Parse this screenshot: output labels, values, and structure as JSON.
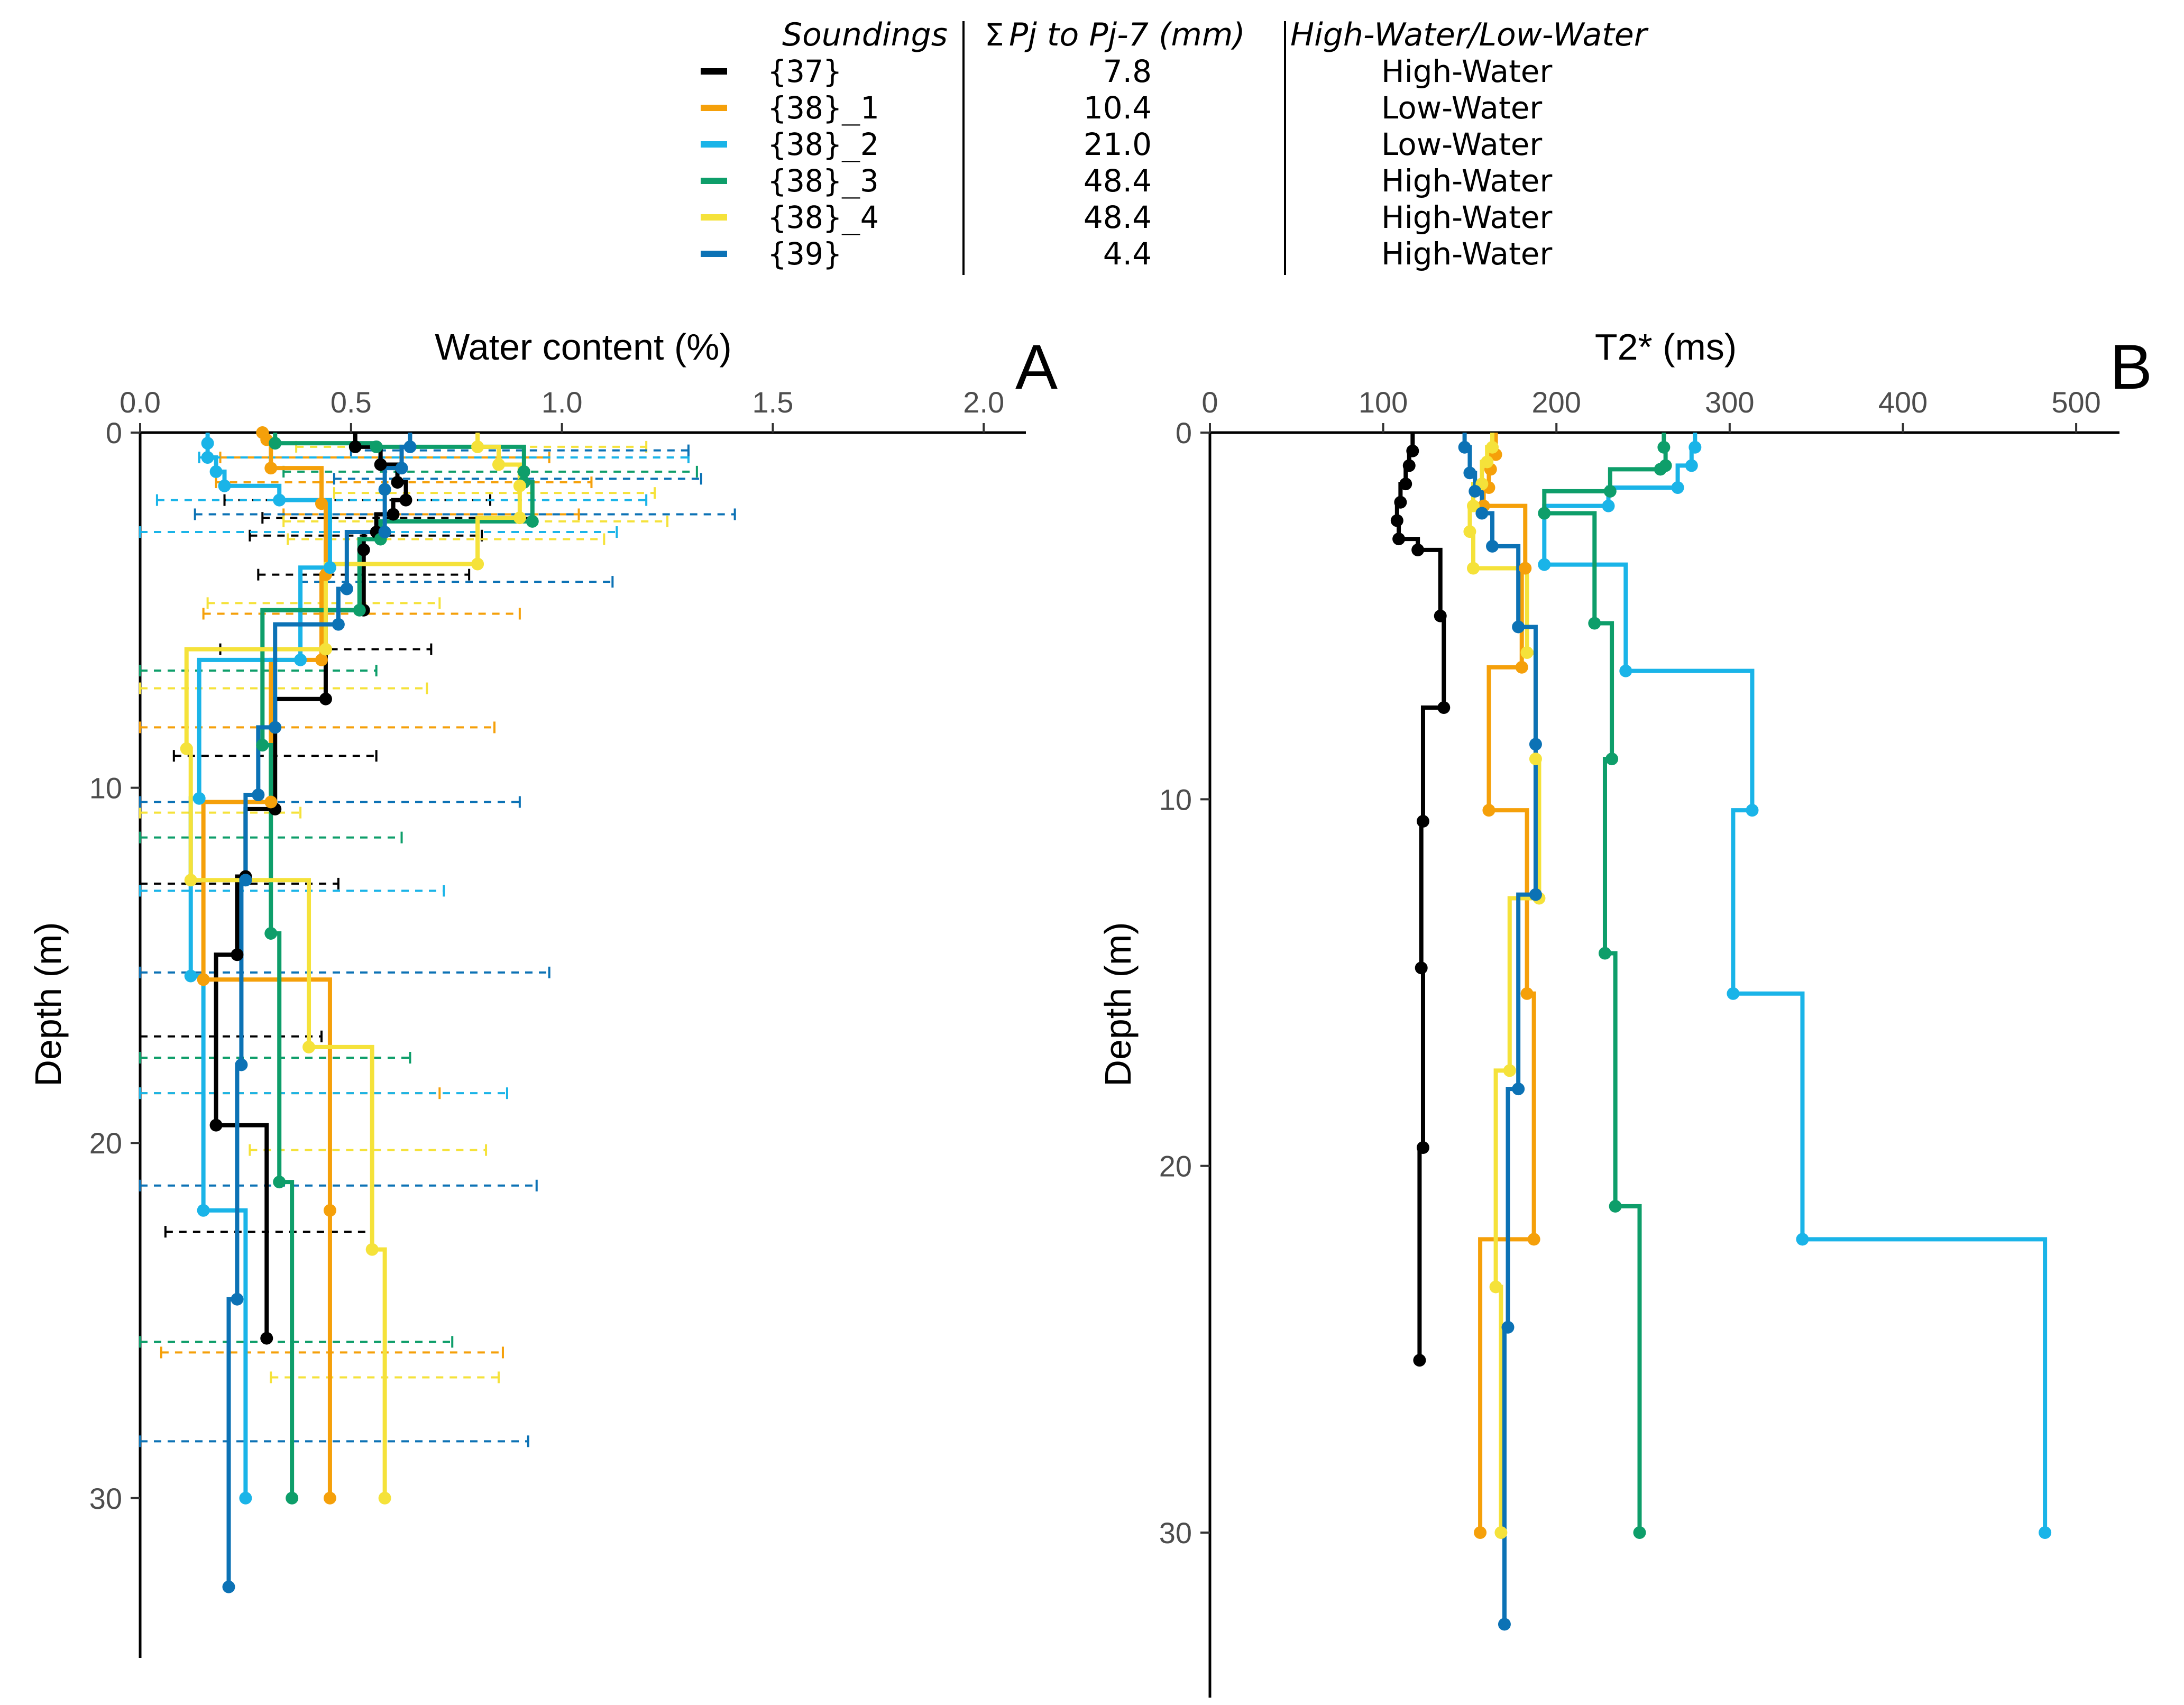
{
  "legend": {
    "headers": {
      "soundings": "Soundings",
      "sum_sigma": "Σ",
      "sum_label": "Pj to Pj-7 (mm)",
      "water": "High-Water/Low-Water"
    },
    "rows": [
      {
        "name": "{37}",
        "sum": "7.8",
        "water": "High-Water",
        "color": "#000000"
      },
      {
        "name": "{38}_1",
        "sum": "10.4",
        "water": "Low-Water",
        "color": "#F5A00A"
      },
      {
        "name": "{38}_2",
        "sum": "21.0",
        "water": "Low-Water",
        "color": "#1AB4E8"
      },
      {
        "name": "{38}_3",
        "sum": "48.4",
        "water": "High-Water",
        "color": "#0E9E6A"
      },
      {
        "name": "{38}_4",
        "sum": "48.4",
        "water": "High-Water",
        "color": "#F5E23A"
      },
      {
        "name": "{39}",
        "sum": "4.4",
        "water": "High-Water",
        "color": "#0C72B5"
      }
    ]
  },
  "chart_data": [
    {
      "type": "line",
      "panel_label": "A",
      "xlabel": "Water content (%)",
      "ylabel": "Depth (m)",
      "xlim": [
        0,
        2.1
      ],
      "ylim": [
        34.5,
        0
      ],
      "x_ticks": [
        "0.0",
        "0.5",
        "1.0",
        "1.5",
        "2.0"
      ],
      "y_ticks": [
        "0",
        "10",
        "20",
        "30"
      ],
      "step": "vertical-then-horizontal",
      "x_axis_position": "top",
      "grid": false,
      "series": [
        {
          "name": "{37}",
          "color": "#000000",
          "points": [
            [
              0.51,
              0.4
            ],
            [
              0.57,
              0.9
            ],
            [
              0.61,
              1.4
            ],
            [
              0.63,
              1.9
            ],
            [
              0.6,
              2.3
            ],
            [
              0.56,
              2.8
            ],
            [
              0.53,
              3.3
            ],
            [
              0.53,
              5.0
            ],
            [
              0.44,
              7.5
            ],
            [
              0.32,
              10.6
            ],
            [
              0.25,
              12.5
            ],
            [
              0.23,
              14.7
            ],
            [
              0.18,
              19.5
            ],
            [
              0.3,
              25.5
            ]
          ],
          "error_bars": [
            [
              1.9,
              0.2,
              0.83
            ],
            [
              2.4,
              0.29,
              0.93
            ],
            [
              2.9,
              0.26,
              0.81
            ],
            [
              4.0,
              0.28,
              0.78
            ],
            [
              6.1,
              0.19,
              0.69
            ],
            [
              9.1,
              0.08,
              0.56
            ],
            [
              12.7,
              0.0,
              0.47
            ],
            [
              17.0,
              0.0,
              0.43
            ],
            [
              22.5,
              0.06,
              0.55
            ]
          ]
        },
        {
          "name": "{38}_1",
          "color": "#F5A00A",
          "points": [
            [
              0.29,
              0.0
            ],
            [
              0.3,
              0.2
            ],
            [
              0.31,
              1.0
            ],
            [
              0.43,
              2.0
            ],
            [
              0.44,
              4.0
            ],
            [
              0.43,
              6.4
            ],
            [
              0.31,
              10.4
            ],
            [
              0.15,
              15.4
            ],
            [
              0.45,
              21.9
            ],
            [
              0.45,
              30.0
            ]
          ],
          "error_bars": [
            [
              0.7,
              0.19,
              0.97
            ],
            [
              1.4,
              0.18,
              1.07
            ],
            [
              2.3,
              0.34,
              1.04
            ],
            [
              5.1,
              0.15,
              0.9
            ],
            [
              8.3,
              0.0,
              0.84
            ],
            [
              18.6,
              0.0,
              0.71
            ],
            [
              25.9,
              0.05,
              0.86
            ]
          ]
        },
        {
          "name": "{38}_2",
          "color": "#1AB4E8",
          "points": [
            [
              0.16,
              0.3
            ],
            [
              0.16,
              0.7
            ],
            [
              0.18,
              1.1
            ],
            [
              0.2,
              1.5
            ],
            [
              0.33,
              1.9
            ],
            [
              0.45,
              3.8
            ],
            [
              0.38,
              6.4
            ],
            [
              0.14,
              10.3
            ],
            [
              0.12,
              15.3
            ],
            [
              0.15,
              21.9
            ],
            [
              0.25,
              30.0
            ]
          ],
          "error_bars": [
            [
              0.7,
              0.14,
              1.3
            ],
            [
              1.9,
              0.04,
              1.2
            ],
            [
              2.8,
              0.0,
              1.13
            ],
            [
              12.9,
              0.0,
              0.72
            ],
            [
              18.6,
              0.0,
              0.87
            ]
          ]
        },
        {
          "name": "{38}_3",
          "color": "#0E9E6A",
          "points": [
            [
              0.32,
              0.3
            ],
            [
              0.56,
              0.4
            ],
            [
              0.91,
              1.1
            ],
            [
              0.91,
              1.4
            ],
            [
              0.93,
              2.5
            ],
            [
              0.57,
              3.0
            ],
            [
              0.52,
              5.0
            ],
            [
              0.29,
              8.8
            ],
            [
              0.31,
              14.1
            ],
            [
              0.33,
              21.1
            ],
            [
              0.36,
              30.0
            ]
          ],
          "error_bars": [
            [
              1.1,
              0.34,
              1.32
            ],
            [
              6.7,
              0.0,
              0.56
            ],
            [
              11.4,
              0.0,
              0.62
            ],
            [
              17.6,
              0.0,
              0.64
            ],
            [
              25.6,
              0.0,
              0.74
            ]
          ]
        },
        {
          "name": "{38}_4",
          "color": "#F5E23A",
          "points": [
            [
              0.8,
              0.4
            ],
            [
              0.85,
              0.9
            ],
            [
              0.9,
              1.5
            ],
            [
              0.9,
              2.4
            ],
            [
              0.8,
              3.7
            ],
            [
              0.44,
              6.1
            ],
            [
              0.11,
              8.9
            ],
            [
              0.12,
              12.6
            ],
            [
              0.4,
              17.3
            ],
            [
              0.55,
              23.0
            ],
            [
              0.58,
              30.0
            ]
          ],
          "error_bars": [
            [
              0.4,
              0.37,
              1.2
            ],
            [
              1.7,
              0.46,
              1.22
            ],
            [
              2.5,
              0.34,
              1.25
            ],
            [
              3.0,
              0.35,
              1.1
            ],
            [
              4.8,
              0.16,
              0.71
            ],
            [
              7.2,
              0.0,
              0.68
            ],
            [
              10.7,
              0.0,
              0.38
            ],
            [
              20.2,
              0.26,
              0.82
            ],
            [
              26.6,
              0.31,
              0.85
            ]
          ]
        },
        {
          "name": "{39}",
          "color": "#0C72B5",
          "points": [
            [
              0.64,
              0.4
            ],
            [
              0.62,
              1.0
            ],
            [
              0.58,
              1.6
            ],
            [
              0.58,
              2.8
            ],
            [
              0.49,
              4.4
            ],
            [
              0.47,
              5.4
            ],
            [
              0.32,
              8.3
            ],
            [
              0.28,
              10.2
            ],
            [
              0.25,
              12.6
            ],
            [
              0.24,
              17.8
            ],
            [
              0.23,
              24.4
            ],
            [
              0.21,
              32.5
            ]
          ],
          "error_bars": [
            [
              0.5,
              0.5,
              1.3
            ],
            [
              1.3,
              0.46,
              1.33
            ],
            [
              2.3,
              0.13,
              1.41
            ],
            [
              4.2,
              0.38,
              1.12
            ],
            [
              10.4,
              0.0,
              0.9
            ],
            [
              15.2,
              0.0,
              0.97
            ],
            [
              21.2,
              0.0,
              0.94
            ],
            [
              28.4,
              0.0,
              0.92
            ]
          ]
        }
      ]
    },
    {
      "type": "line",
      "panel_label": "B",
      "xlabel": "T2* (ms)",
      "ylabel": "Depth (m)",
      "xlim": [
        0,
        525
      ],
      "ylim": [
        34.5,
        0
      ],
      "x_ticks": [
        "0",
        "100",
        "200",
        "300",
        "400",
        "500"
      ],
      "y_ticks": [
        "0",
        "10",
        "20",
        "30"
      ],
      "step": "vertical-then-horizontal",
      "x_axis_position": "top",
      "grid": false,
      "series": [
        {
          "name": "{37}",
          "color": "#000000",
          "points": [
            [
              117,
              0.5
            ],
            [
              115,
              0.9
            ],
            [
              113,
              1.4
            ],
            [
              110,
              1.9
            ],
            [
              108,
              2.4
            ],
            [
              109,
              2.9
            ],
            [
              120,
              3.2
            ],
            [
              133,
              5.0
            ],
            [
              135,
              7.5
            ],
            [
              123,
              10.6
            ],
            [
              122,
              14.6
            ],
            [
              123,
              19.5
            ],
            [
              121,
              25.3
            ]
          ],
          "error_bars": []
        },
        {
          "name": "{38}_1",
          "color": "#F5A00A",
          "points": [
            [
              165,
              0.6
            ],
            [
              162,
              1.0
            ],
            [
              161,
              1.5
            ],
            [
              158,
              2.0
            ],
            [
              182,
              3.7
            ],
            [
              180,
              6.4
            ],
            [
              161,
              10.3
            ],
            [
              183,
              15.3
            ],
            [
              187,
              22.0
            ],
            [
              156,
              30.0
            ]
          ],
          "error_bars": []
        },
        {
          "name": "{38}_2",
          "color": "#1AB4E8",
          "points": [
            [
              280,
              0.4
            ],
            [
              278,
              0.9
            ],
            [
              270,
              1.5
            ],
            [
              230,
              2.0
            ],
            [
              193,
              3.6
            ],
            [
              240,
              6.5
            ],
            [
              313,
              10.3
            ],
            [
              302,
              15.3
            ],
            [
              342,
              22.0
            ],
            [
              482,
              30.0
            ]
          ],
          "error_bars": []
        },
        {
          "name": "{38}_3",
          "color": "#0E9E6A",
          "points": [
            [
              262,
              0.4
            ],
            [
              263,
              0.9
            ],
            [
              260,
              1.0
            ],
            [
              231,
              1.6
            ],
            [
              193,
              2.2
            ],
            [
              222,
              5.2
            ],
            [
              232,
              8.9
            ],
            [
              228,
              14.2
            ],
            [
              234,
              21.1
            ],
            [
              248,
              30.0
            ]
          ],
          "error_bars": []
        },
        {
          "name": "{38}_4",
          "color": "#F5E23A",
          "points": [
            [
              163,
              0.4
            ],
            [
              160,
              0.8
            ],
            [
              157,
              1.4
            ],
            [
              152,
              2.0
            ],
            [
              150,
              2.7
            ],
            [
              152,
              3.7
            ],
            [
              183,
              6.0
            ],
            [
              188,
              8.9
            ],
            [
              190,
              12.7
            ],
            [
              173,
              17.4
            ],
            [
              165,
              23.3
            ],
            [
              168,
              30.0
            ]
          ],
          "error_bars": []
        },
        {
          "name": "{39}",
          "color": "#0C72B5",
          "points": [
            [
              147,
              0.4
            ],
            [
              150,
              1.1
            ],
            [
              153,
              1.6
            ],
            [
              157,
              2.2
            ],
            [
              163,
              3.1
            ],
            [
              178,
              5.3
            ],
            [
              188,
              8.5
            ],
            [
              188,
              12.6
            ],
            [
              178,
              17.9
            ],
            [
              172,
              24.4
            ],
            [
              170,
              32.5
            ]
          ],
          "error_bars": []
        }
      ]
    }
  ]
}
